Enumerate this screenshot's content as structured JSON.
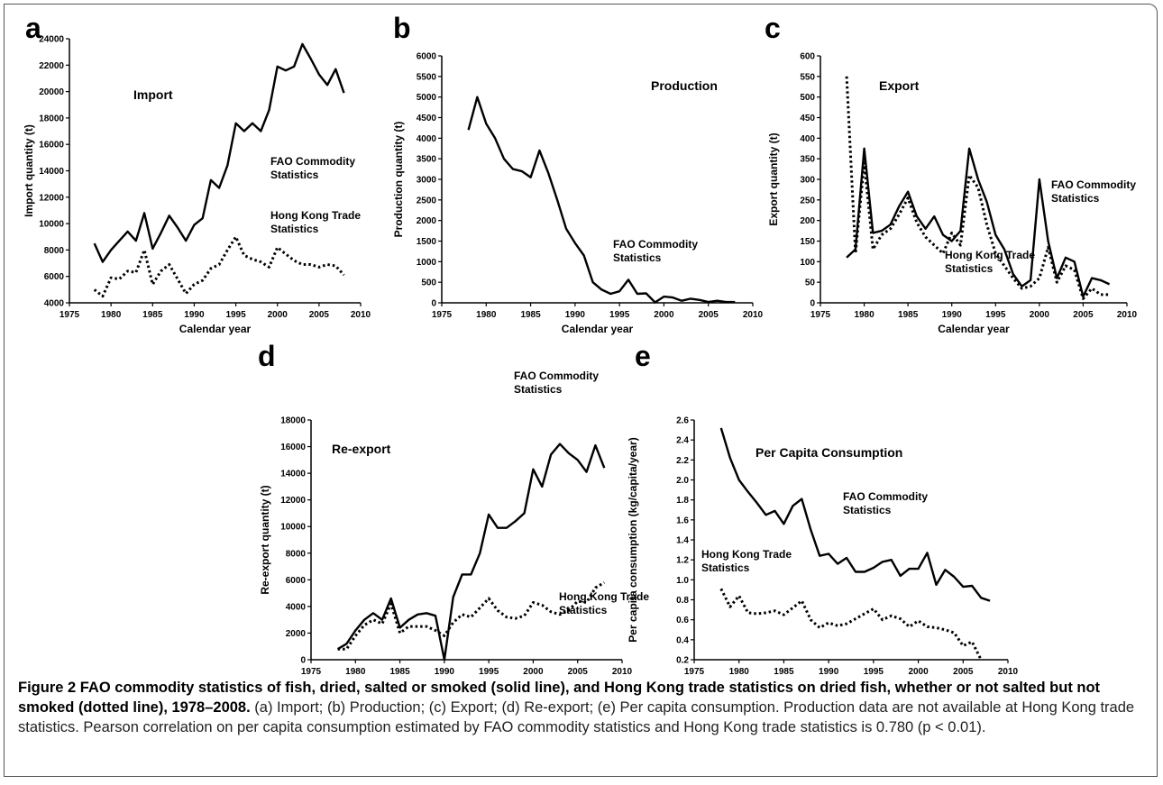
{
  "chart_data": [
    {
      "type": "line",
      "panel_label": "a",
      "title": "Import",
      "x_label": "Calendar year",
      "y_label": "Import quantity (t)",
      "x": [
        1978,
        1979,
        1980,
        1981,
        1982,
        1983,
        1984,
        1985,
        1986,
        1987,
        1988,
        1989,
        1990,
        1991,
        1992,
        1993,
        1994,
        1995,
        1996,
        1997,
        1998,
        1999,
        2000,
        2001,
        2002,
        2003,
        2004,
        2005,
        2006,
        2007,
        2008
      ],
      "series": [
        {
          "name": "FAO Commodity Statistics",
          "color": "#000000",
          "line_style": "solid",
          "values": [
            8500,
            7100,
            8000,
            8700,
            9400,
            8700,
            10800,
            8100,
            9300,
            10600,
            9700,
            8700,
            9900,
            10400,
            13300,
            12700,
            14400,
            17600,
            17000,
            17600,
            17000,
            18600,
            21900,
            21600,
            21900,
            23600,
            22500,
            21300,
            20500,
            21700,
            19900
          ]
        },
        {
          "name": "Hong Kong Trade Statistics",
          "color": "#000000",
          "line_style": "dotted",
          "values": [
            5000,
            4500,
            5900,
            5800,
            6400,
            6300,
            8000,
            5400,
            6400,
            6900,
            5800,
            4700,
            5400,
            5700,
            6600,
            6900,
            8000,
            9000,
            7600,
            7300,
            7100,
            6700,
            8200,
            7700,
            7200,
            6900,
            6900,
            6700,
            6900,
            6800,
            6100
          ]
        }
      ],
      "xlim": [
        1975,
        2010
      ],
      "xticks": [
        1975,
        1980,
        1985,
        1990,
        1995,
        2000,
        2005,
        2010
      ],
      "ylim": [
        4000,
        24000
      ],
      "yticks": [
        4000,
        6000,
        8000,
        10000,
        12000,
        14000,
        16000,
        18000,
        20000,
        22000,
        24000
      ]
    },
    {
      "type": "line",
      "panel_label": "b",
      "title": "Production",
      "x_label": "Calendar year",
      "y_label": "Production quantity (t)",
      "x": [
        1978,
        1979,
        1980,
        1981,
        1982,
        1983,
        1984,
        1985,
        1986,
        1987,
        1988,
        1989,
        1990,
        1991,
        1992,
        1993,
        1994,
        1995,
        1996,
        1997,
        1998,
        1999,
        2000,
        2001,
        2002,
        2003,
        2004,
        2005,
        2006,
        2007,
        2008
      ],
      "series": [
        {
          "name": "FAO Commodity Statistics",
          "color": "#000000",
          "line_style": "solid",
          "values": [
            4200,
            5000,
            4350,
            4000,
            3500,
            3250,
            3200,
            3050,
            3700,
            3150,
            2500,
            1800,
            1450,
            1150,
            500,
            320,
            220,
            280,
            560,
            220,
            230,
            10,
            150,
            130,
            50,
            100,
            70,
            20,
            50,
            20,
            20
          ]
        }
      ],
      "xlim": [
        1975,
        2010
      ],
      "xticks": [
        1975,
        1980,
        1985,
        1990,
        1995,
        2000,
        2005,
        2010
      ],
      "ylim": [
        0,
        6000
      ],
      "yticks": [
        0,
        500,
        1000,
        1500,
        2000,
        2500,
        3000,
        3500,
        4000,
        4500,
        5000,
        5500,
        6000
      ]
    },
    {
      "type": "line",
      "panel_label": "c",
      "title": "Export",
      "x_label": "Calendar year",
      "y_label": "Export quantity (t)",
      "x": [
        1978,
        1979,
        1980,
        1981,
        1982,
        1983,
        1984,
        1985,
        1986,
        1987,
        1988,
        1989,
        1990,
        1991,
        1992,
        1993,
        1994,
        1995,
        1996,
        1997,
        1998,
        1999,
        2000,
        2001,
        2002,
        2003,
        2004,
        2005,
        2006,
        2007,
        2008
      ],
      "series": [
        {
          "name": "FAO Commodity Statistics",
          "color": "#000000",
          "line_style": "solid",
          "values": [
            110,
            130,
            375,
            170,
            175,
            190,
            235,
            270,
            210,
            180,
            210,
            165,
            150,
            175,
            375,
            300,
            245,
            165,
            130,
            70,
            40,
            55,
            300,
            150,
            60,
            110,
            100,
            15,
            60,
            55,
            45
          ]
        },
        {
          "name": "Hong Kong Trade Statistics",
          "color": "#000000",
          "line_style": "dotted",
          "values": [
            550,
            120,
            340,
            130,
            165,
            180,
            215,
            255,
            195,
            160,
            140,
            120,
            170,
            140,
            310,
            280,
            190,
            120,
            90,
            60,
            35,
            40,
            60,
            135,
            50,
            90,
            80,
            10,
            35,
            20,
            20
          ]
        }
      ],
      "xlim": [
        1975,
        2010
      ],
      "xticks": [
        1975,
        1980,
        1985,
        1990,
        1995,
        2000,
        2005,
        2010
      ],
      "ylim": [
        0,
        600
      ],
      "yticks": [
        0,
        50,
        100,
        150,
        200,
        250,
        300,
        350,
        400,
        450,
        500,
        550,
        600
      ]
    },
    {
      "type": "line",
      "panel_label": "d",
      "title": "Re-export",
      "x_label": "Calendar year",
      "y_label": "Re-export quantity (t)",
      "x": [
        1978,
        1979,
        1980,
        1981,
        1982,
        1983,
        1984,
        1985,
        1986,
        1987,
        1988,
        1989,
        1990,
        1991,
        1992,
        1993,
        1994,
        1995,
        1996,
        1997,
        1998,
        1999,
        2000,
        2001,
        2002,
        2003,
        2004,
        2005,
        2006,
        2007,
        2008
      ],
      "series": [
        {
          "name": "FAO Commodity Statistics",
          "color": "#000000",
          "line_style": "solid",
          "values": [
            800,
            1200,
            2200,
            3000,
            3500,
            3000,
            4600,
            2400,
            3000,
            3400,
            3500,
            3300,
            0,
            4700,
            6400,
            6400,
            8000,
            10900,
            9900,
            9900,
            10400,
            11000,
            14300,
            13000,
            15400,
            16200,
            15500,
            15000,
            14100,
            16100,
            14400
          ]
        },
        {
          "name": "Hong Kong Trade Statistics",
          "color": "#000000",
          "line_style": "dotted",
          "values": [
            800,
            800,
            1800,
            2600,
            3000,
            2700,
            4200,
            2000,
            2500,
            2500,
            2500,
            2200,
            1800,
            2800,
            3400,
            3200,
            3900,
            4600,
            3700,
            3200,
            3100,
            3300,
            4300,
            4100,
            3600,
            3400,
            3700,
            4400,
            4300,
            5400,
            5800
          ]
        }
      ],
      "xlim": [
        1975,
        2010
      ],
      "xticks": [
        1975,
        1980,
        1985,
        1990,
        1995,
        2000,
        2005,
        2010
      ],
      "ylim": [
        0,
        18000
      ],
      "yticks": [
        0,
        2000,
        4000,
        6000,
        8000,
        10000,
        12000,
        14000,
        16000,
        18000
      ]
    },
    {
      "type": "line",
      "panel_label": "e",
      "title": "Per Capita Consumption",
      "x_label": "Calendar year",
      "y_label": "Per capita consumption (kg/capita/year)",
      "x": [
        1978,
        1979,
        1980,
        1981,
        1982,
        1983,
        1984,
        1985,
        1986,
        1987,
        1988,
        1989,
        1990,
        1991,
        1992,
        1993,
        1994,
        1995,
        1996,
        1997,
        1998,
        1999,
        2000,
        2001,
        2002,
        2003,
        2004,
        2005,
        2006,
        2007,
        2008
      ],
      "series": [
        {
          "name": "FAO Commodity Statistics",
          "color": "#000000",
          "line_style": "solid",
          "values": [
            2.52,
            2.22,
            2.0,
            1.88,
            1.77,
            1.65,
            1.69,
            1.56,
            1.74,
            1.81,
            1.5,
            1.24,
            1.26,
            1.16,
            1.22,
            1.08,
            1.08,
            1.12,
            1.18,
            1.2,
            1.04,
            1.11,
            1.11,
            1.27,
            0.95,
            1.1,
            1.03,
            0.93,
            0.94,
            0.82,
            0.79
          ]
        },
        {
          "name": "Hong Kong Trade Statistics",
          "color": "#000000",
          "line_style": "dotted",
          "values": [
            0.91,
            0.73,
            0.84,
            0.67,
            0.66,
            0.67,
            0.69,
            0.65,
            0.72,
            0.79,
            0.6,
            0.52,
            0.57,
            0.54,
            0.56,
            0.61,
            0.66,
            0.71,
            0.6,
            0.64,
            0.61,
            0.53,
            0.59,
            0.53,
            0.52,
            0.5,
            0.47,
            0.34,
            0.38,
            0.2,
            null
          ]
        }
      ],
      "xlim": [
        1975,
        2010
      ],
      "xticks": [
        1975,
        1980,
        1985,
        1990,
        1995,
        2000,
        2005,
        2010
      ],
      "ylim": [
        0.2,
        2.6
      ],
      "yticks": [
        0.2,
        0.4,
        0.6,
        0.8,
        {
          "value": 1,
          "label": "1.0"
        },
        1.2,
        1.4,
        1.6,
        1.8,
        {
          "value": 2,
          "label": "2.0"
        },
        2.2,
        2.4,
        2.6
      ]
    }
  ],
  "caption": {
    "title": "Figure 2 FAO commodity statistics of fish, dried, salted or smoked (solid line), and Hong Kong trade statistics on dried fish, whether or not salted but not smoked (dotted line), 1978–2008.",
    "body": "(a) Import; (b) Production; (c) Export; (d) Re-export; (e) Per capita consumption. Production data are not available at Hong Kong trade statistics. Pearson correlation on per capita consumption estimated by FAO commodity statistics and Hong Kong trade statistics is 0.780 (p < 0.01)."
  }
}
